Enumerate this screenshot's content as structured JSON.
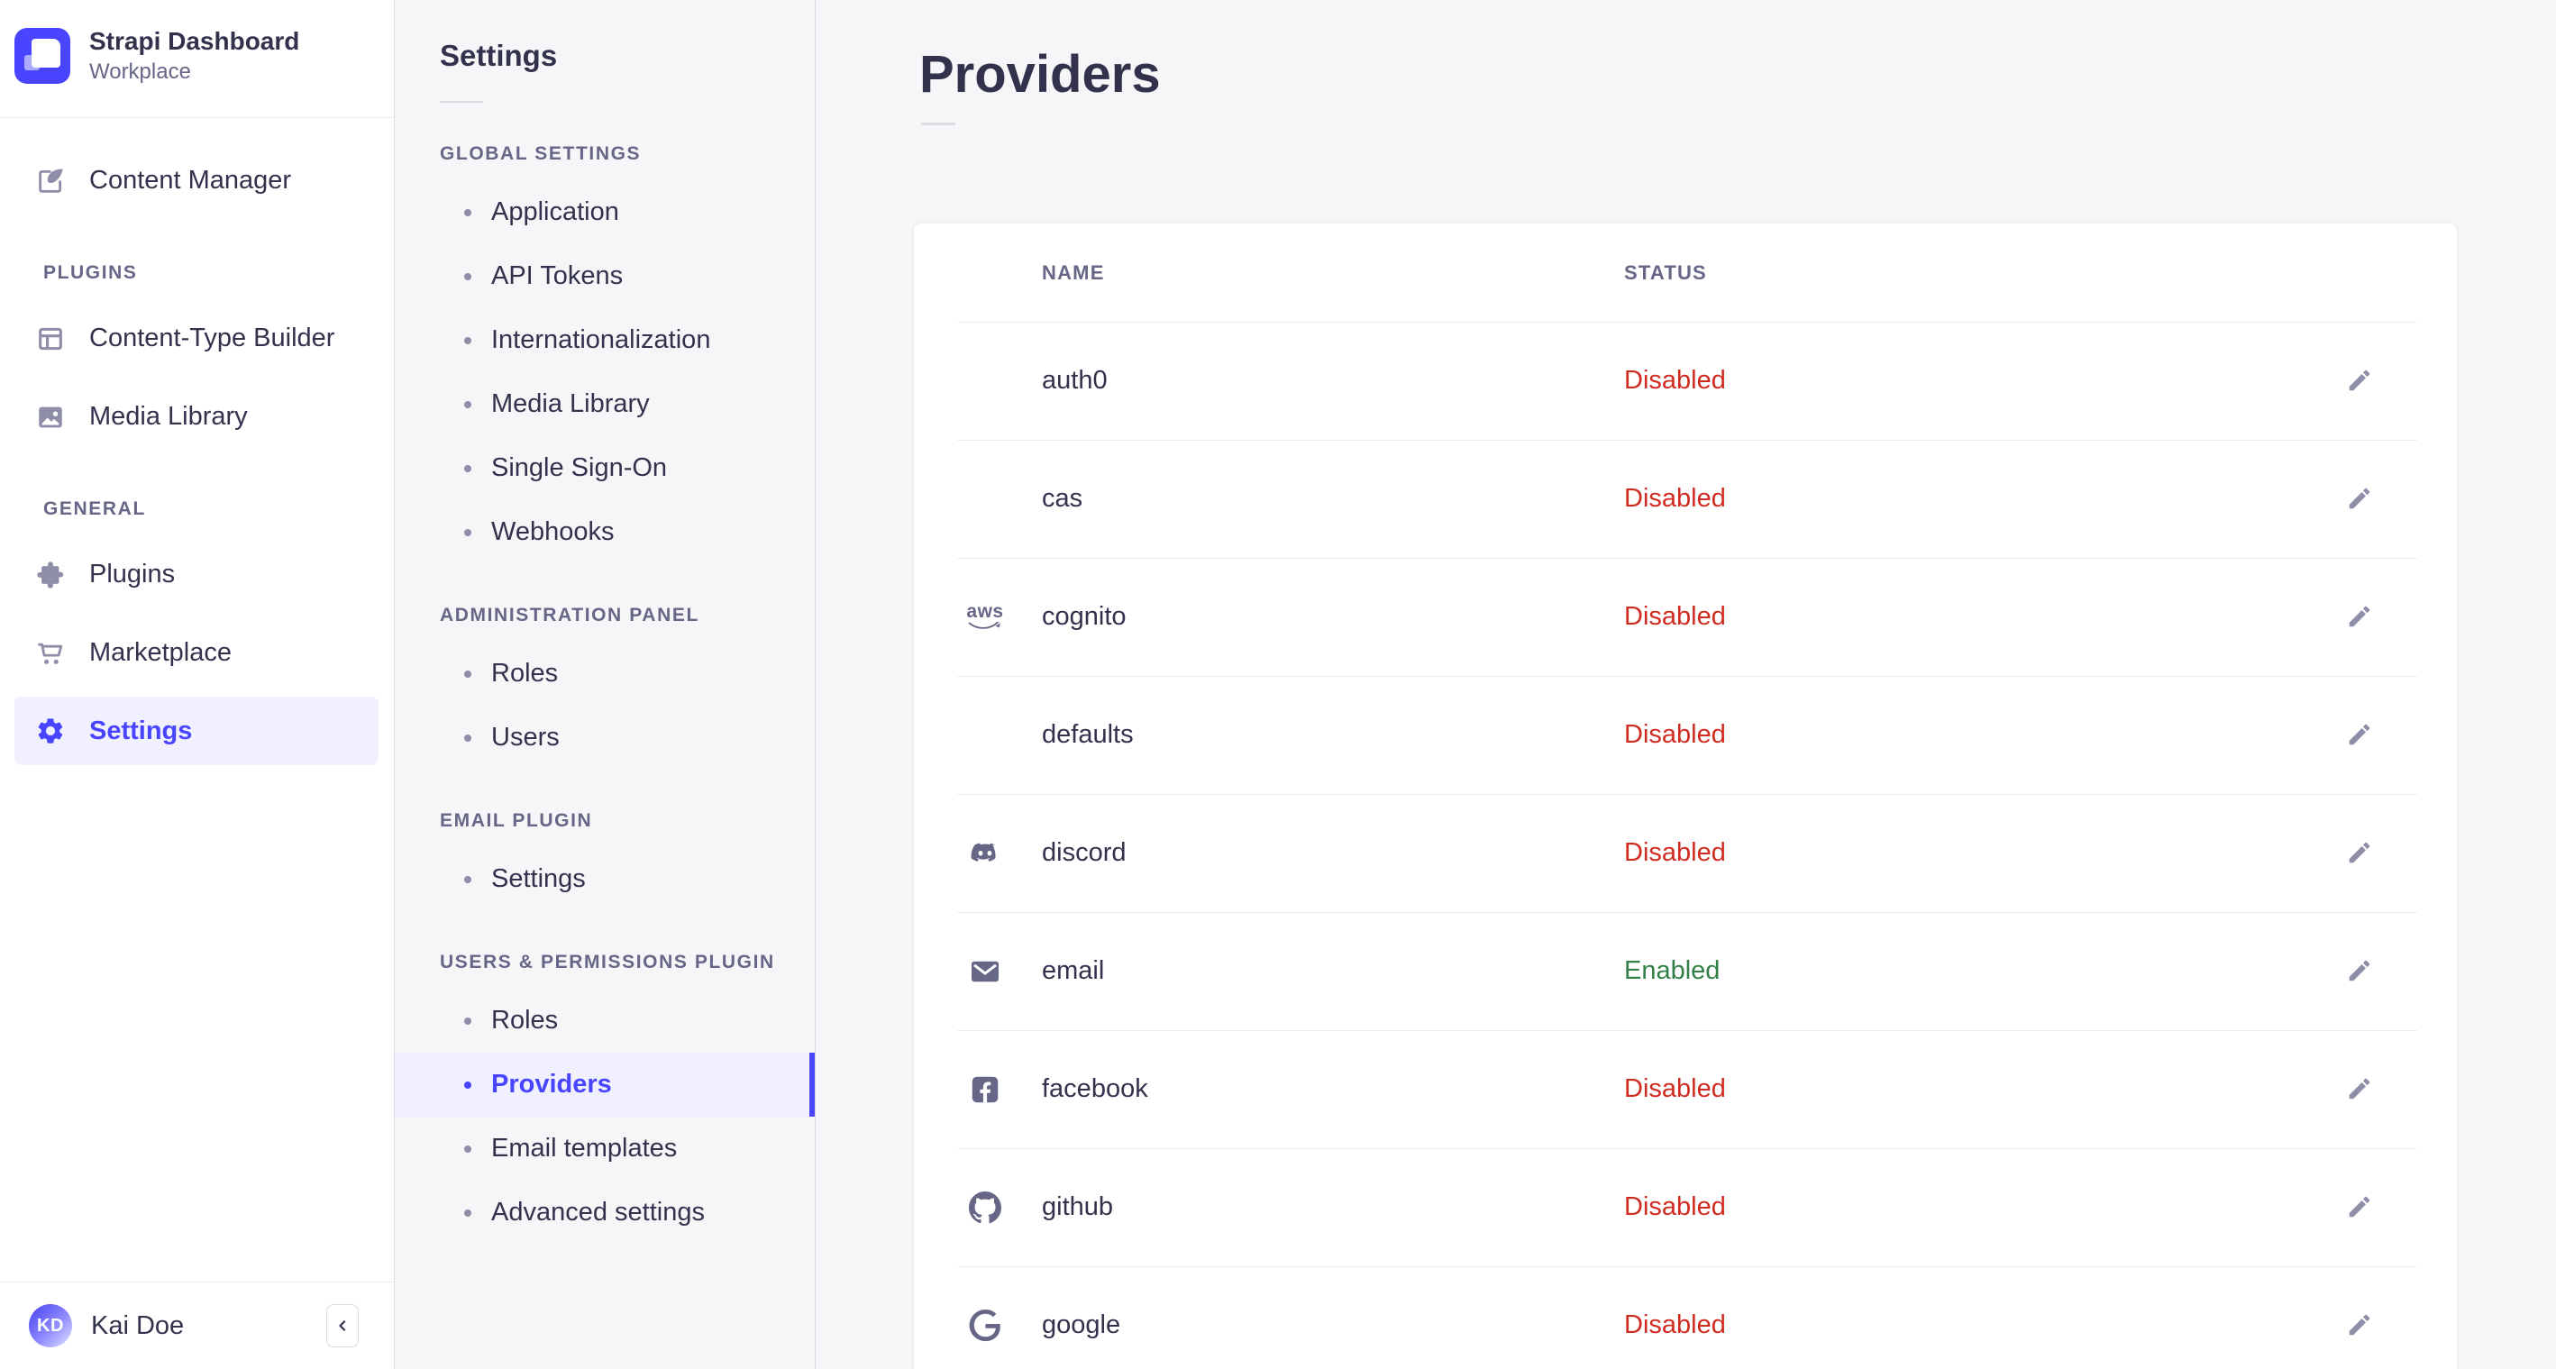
{
  "colors": {
    "accent": "#4945ff",
    "active_bg": "#f0f0ff",
    "disabled_red": "#d02b20",
    "enabled_green": "#328048",
    "text_dark": "#32324d",
    "text_muted": "#666687",
    "icon_gray": "#8e8ea9",
    "page_bg": "#f6f6f9"
  },
  "sidebar": {
    "brand": {
      "title": "Strapi Dashboard",
      "subtitle": "Workplace"
    },
    "top_item": {
      "label": "Content Manager",
      "icon": "feather-icon"
    },
    "sections": [
      {
        "label": "PLUGINS",
        "items": [
          {
            "label": "Content-Type Builder",
            "icon": "layout-icon"
          },
          {
            "label": "Media Library",
            "icon": "image-icon"
          }
        ]
      },
      {
        "label": "GENERAL",
        "items": [
          {
            "label": "Plugins",
            "icon": "puzzle-icon"
          },
          {
            "label": "Marketplace",
            "icon": "cart-icon"
          },
          {
            "label": "Settings",
            "icon": "gear-icon",
            "active": true
          }
        ]
      }
    ],
    "user": {
      "name": "Kai Doe",
      "initials": "KD"
    }
  },
  "settings_nav": {
    "title": "Settings",
    "sections": [
      {
        "label": "GLOBAL SETTINGS",
        "items": [
          {
            "label": "Application"
          },
          {
            "label": "API Tokens"
          },
          {
            "label": "Internationalization"
          },
          {
            "label": "Media Library"
          },
          {
            "label": "Single Sign-On"
          },
          {
            "label": "Webhooks"
          }
        ]
      },
      {
        "label": "ADMINISTRATION PANEL",
        "items": [
          {
            "label": "Roles"
          },
          {
            "label": "Users"
          }
        ]
      },
      {
        "label": "EMAIL PLUGIN",
        "items": [
          {
            "label": "Settings"
          }
        ]
      },
      {
        "label": "USERS & PERMISSIONS PLUGIN",
        "items": [
          {
            "label": "Roles"
          },
          {
            "label": "Providers",
            "active": true
          },
          {
            "label": "Email templates"
          },
          {
            "label": "Advanced settings"
          }
        ]
      }
    ]
  },
  "main": {
    "title": "Providers",
    "table": {
      "headers": {
        "name": "NAME",
        "status": "STATUS"
      },
      "rows": [
        {
          "name": "auth0",
          "icon": null,
          "status": "Disabled"
        },
        {
          "name": "cas",
          "icon": null,
          "status": "Disabled"
        },
        {
          "name": "cognito",
          "icon": "aws-icon",
          "status": "Disabled"
        },
        {
          "name": "defaults",
          "icon": null,
          "status": "Disabled"
        },
        {
          "name": "discord",
          "icon": "discord-icon",
          "status": "Disabled"
        },
        {
          "name": "email",
          "icon": "envelope-icon",
          "status": "Enabled"
        },
        {
          "name": "facebook",
          "icon": "facebook-icon",
          "status": "Disabled"
        },
        {
          "name": "github",
          "icon": "github-icon",
          "status": "Disabled"
        },
        {
          "name": "google",
          "icon": "google-icon",
          "status": "Disabled"
        }
      ]
    }
  },
  "help_button": {
    "label": "?"
  }
}
